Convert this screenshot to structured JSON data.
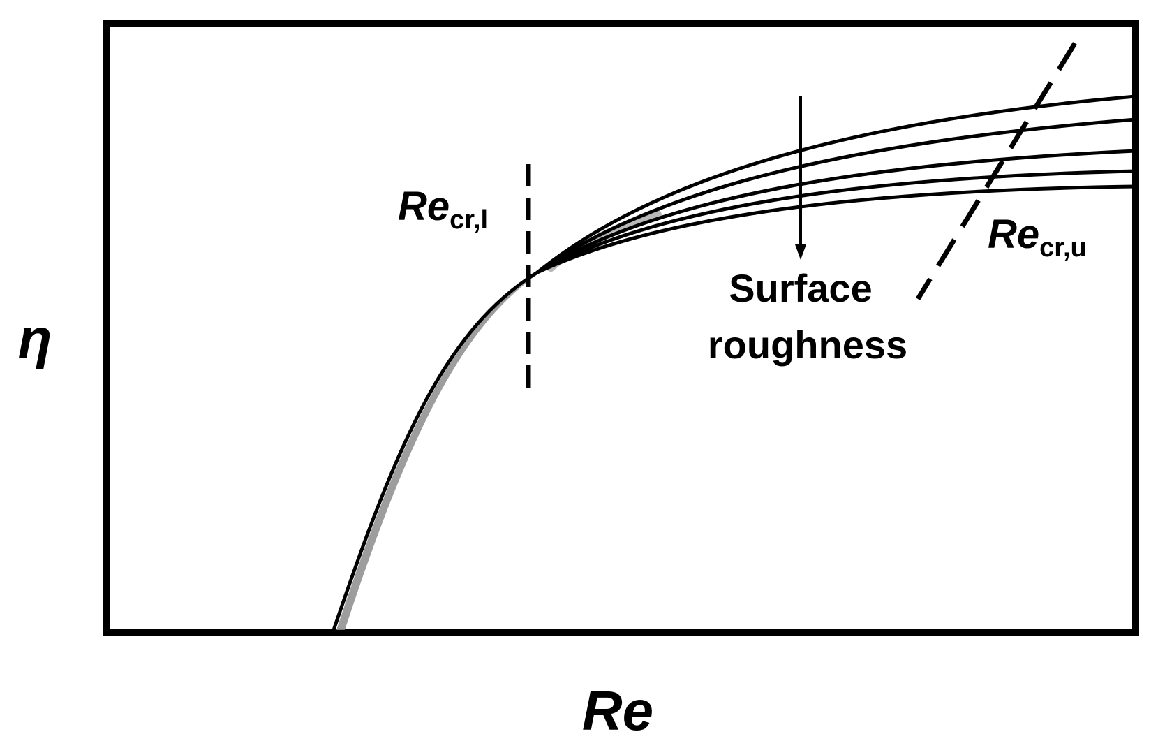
{
  "diagram": {
    "y_axis_label": "η",
    "x_axis_label": "Re",
    "lower_critical": {
      "main": "Re",
      "subscript": "cr,l"
    },
    "upper_critical": {
      "main": "Re",
      "subscript": "cr,u"
    },
    "arrow_label": {
      "line1": "Surface",
      "line2": "roughness"
    },
    "curve_count": 5,
    "colors": {
      "stroke": "#000000",
      "shade": "#8c8c8c",
      "background": "#ffffff"
    }
  }
}
